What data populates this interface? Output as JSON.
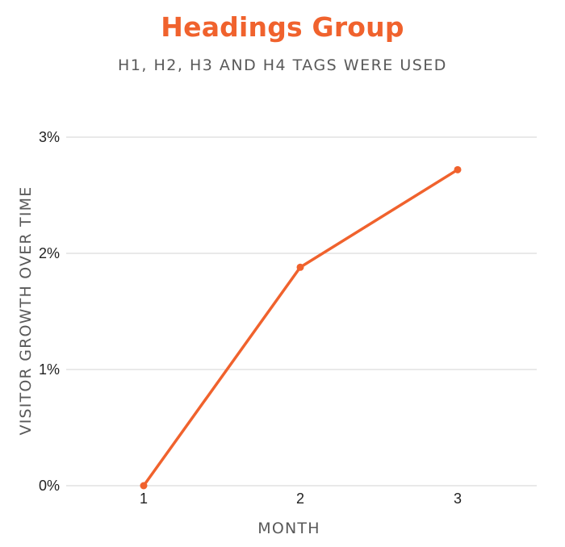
{
  "chart_data": {
    "type": "line",
    "title": "Headings Group",
    "subtitle": "H1, H2, H3 AND H4 TAGS WERE USED",
    "xlabel": "MONTH",
    "ylabel": "VISITOR GROWTH OVER TIME",
    "x": [
      1,
      2,
      3
    ],
    "xticks": [
      "1",
      "2",
      "3"
    ],
    "yticks": [
      "0%",
      "1%",
      "2%",
      "3%"
    ],
    "ylim": [
      0,
      3
    ],
    "series": [
      {
        "values": [
          0,
          1.88,
          2.72
        ],
        "color": "#f0622d"
      }
    ],
    "grid": true,
    "legend": "none"
  }
}
